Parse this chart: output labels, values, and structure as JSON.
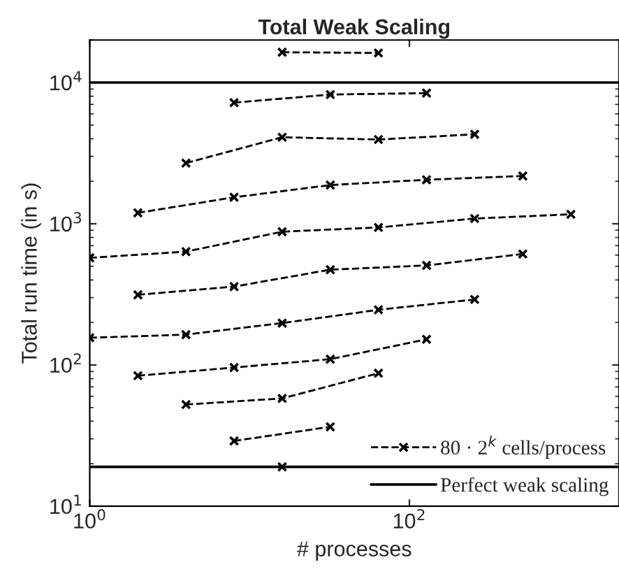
{
  "chart_data": {
    "type": "line",
    "title": "Total Weak Scaling",
    "xlabel": "# processes",
    "ylabel": "Total run time (in s)",
    "log": "xy",
    "xlim": [
      1,
      2048
    ],
    "ylim": [
      10,
      20000
    ],
    "xticks": [
      {
        "value": 1,
        "label": "10$^{0}$"
      },
      {
        "value": 100,
        "label": "10$^{2}$"
      }
    ],
    "yticks": [
      {
        "value": 10,
        "label": "10$^{1}$"
      },
      {
        "value": 100,
        "label": "10$^{2}$"
      },
      {
        "value": 1000,
        "label": "10$^{3}$"
      },
      {
        "value": 10000,
        "label": "10$^{4}$"
      }
    ],
    "marker": "cross",
    "line_style": "dashed",
    "legend": "bottom right",
    "grid": false,
    "series": [
      {
        "color": "#000000",
        "x": [
          16
        ],
        "values": [
          19
        ]
      },
      {
        "name": "80 · 2$^{k}$ cells/process",
        "color": "#000000",
        "x": [
          8,
          32
        ],
        "values": [
          29,
          36.5
        ]
      },
      {
        "color": "#000000",
        "x": [
          4,
          16,
          64
        ],
        "values": [
          52.5,
          58,
          87.5
        ]
      },
      {
        "color": "#000000",
        "x": [
          2,
          8,
          32,
          128
        ],
        "values": [
          84,
          96,
          110,
          152
        ]
      },
      {
        "color": "#000000",
        "x": [
          1,
          4,
          16,
          64,
          256
        ],
        "values": [
          156,
          164,
          198,
          246,
          291
        ]
      },
      {
        "color": "#000000",
        "x": [
          2,
          8,
          32,
          128,
          512
        ],
        "values": [
          314,
          359,
          473,
          507,
          611
        ]
      },
      {
        "color": "#000000",
        "x": [
          1,
          4,
          16,
          64,
          256,
          1024
        ],
        "values": [
          574,
          635,
          879,
          942,
          1089,
          1167
        ]
      },
      {
        "color": "#000000",
        "x": [
          2,
          8,
          32,
          128,
          512
        ],
        "values": [
          1195,
          1540,
          1880,
          2050,
          2180
        ]
      },
      {
        "color": "#000000",
        "x": [
          4,
          16,
          64,
          256
        ],
        "values": [
          2690,
          4100,
          3950,
          4300
        ]
      },
      {
        "color": "#000000",
        "x": [
          8,
          32,
          128
        ],
        "values": [
          7210,
          8220,
          8420
        ]
      },
      {
        "color": "#000000",
        "x": [
          16,
          64
        ],
        "values": [
          16400,
          16200
        ]
      }
    ],
    "ref_lines": [
      {
        "axis": "y",
        "value": 19,
        "label": "Perfect weak scaling",
        "color": "#000000",
        "line_style": "solid"
      },
      {
        "axis": "y",
        "value": 10000,
        "color": "#000000",
        "line_style": "solid"
      }
    ]
  }
}
